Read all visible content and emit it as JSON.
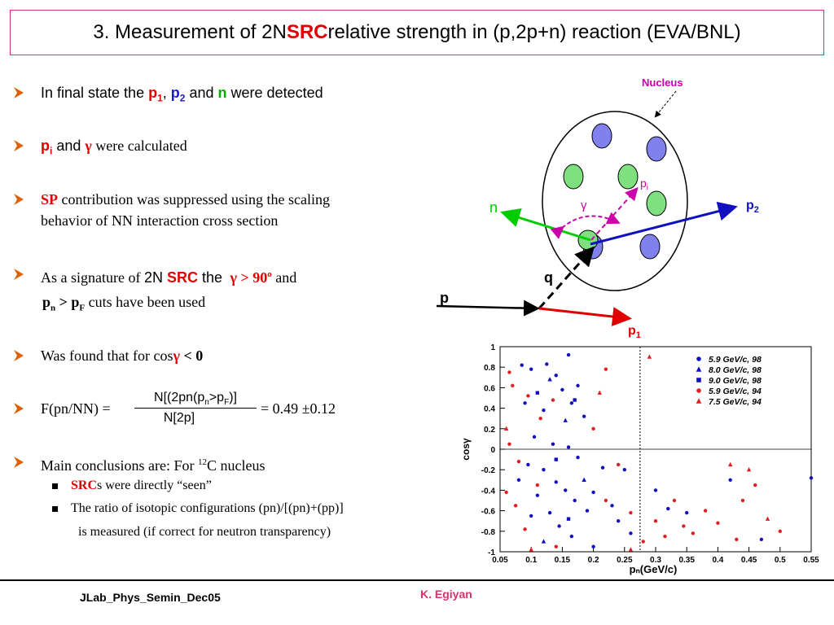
{
  "title": {
    "prefix": "3. Measurement of 2N ",
    "highlight": "SRC",
    "suffix": " relative strength in (p,2p+n) reaction (EVA/BNL)"
  },
  "bullets": {
    "b1": {
      "pre": "In final state the ",
      "p": "p",
      "sub1": "1",
      "comma": ", ",
      "p2": "p",
      "sub2": "2",
      "and": " and ",
      "n": "n",
      "post": " were detected"
    },
    "b2": {
      "p": "p",
      "sub": "i",
      "and": " and ",
      "gamma": "γ",
      "post": " were calculated"
    },
    "b3": {
      "sp": "SP",
      "line1": " contribution was suppressed using the scaling",
      "line2": "behavior of NN interaction cross section"
    },
    "b4": {
      "pre": "As a signature of ",
      "twoN": "2N ",
      "src": "SRC",
      "the": " the ",
      "cut": "γ > 90",
      "deg": "o",
      "and": " and",
      "line2_p": "p",
      "line2_n": "n",
      "line2_gt": " > p",
      "line2_F": "F",
      "line2_post": " cuts  have been used"
    },
    "b5": {
      "pre": "Was found that for cos",
      "gamma": "γ",
      "post": " < 0"
    },
    "b6": {
      "pre": "F(pn/NN) = ",
      "num_pre": "N[(2pn(p",
      "num_n": "n",
      "num_mid": ">p",
      "num_F": "F",
      "num_post": ")]",
      "den": "N[2p]",
      "result": "= 0.49 ±0.12"
    },
    "b7": {
      "pre": "Main conclusions are: For ",
      "sup": "12",
      "post": "C nucleus"
    }
  },
  "subbullets": {
    "s1": {
      "src": "SRC",
      "post": "s were directly “seen”"
    },
    "s2": {
      "line1": "The ratio of isotopic configurations (pn)/[(pn)+(pp)]",
      "line2": "is measured (if correct for neutron transparency)"
    }
  },
  "diagram": {
    "nucleus_label": "Nucleus",
    "n_label": "n",
    "p2_label": "p",
    "p2_sub": "2",
    "pi_label": "p",
    "pi_sub": "i",
    "gamma_label": "γ",
    "q_label": "q",
    "p_label": "p",
    "p1_label": "p",
    "p1_sub": "1",
    "colors": {
      "nucleon_blue": "#8080ee",
      "nucleon_green": "#7ee07e",
      "n_arrow": "#00cc00",
      "p2_arrow": "#1010c0",
      "p1_arrow": "#e00000",
      "gamma_arc": "#cc00aa",
      "nucleus_label": "#cc00aa"
    }
  },
  "chart_data": {
    "type": "scatter",
    "title": "",
    "xlabel": "pₙ(GeV/c)",
    "ylabel": "cosγ",
    "xlim": [
      0.05,
      0.55
    ],
    "ylim": [
      -1,
      1
    ],
    "x_ticks": [
      "0.05",
      "0.1",
      "0.15",
      "0.2",
      "0.25",
      "0.3",
      "0.35",
      "0.4",
      "0.45",
      "0.5",
      "0.55"
    ],
    "y_ticks": [
      "1",
      "0.8",
      "0.6",
      "0.4",
      "0.2",
      "0",
      "-0.2",
      "-0.4",
      "-0.6",
      "-0.8",
      "-1"
    ],
    "cut_x": 0.275,
    "cut_y": 0,
    "legend_position": "top-right",
    "legend": [
      "5.9 GeV/c, 98",
      "8.0 GeV/c, 98",
      "9.0 GeV/c, 98",
      "5.9 GeV/c, 94",
      "7.5 GeV/c, 94"
    ],
    "series": [
      {
        "name": "5.9 GeV/c, 98",
        "color": "#1010c0",
        "marker": "circle",
        "points": [
          [
            0.085,
            0.82
          ],
          [
            0.1,
            0.78
          ],
          [
            0.125,
            0.83
          ],
          [
            0.14,
            0.72
          ],
          [
            0.16,
            0.92
          ],
          [
            0.15,
            0.58
          ],
          [
            0.175,
            0.62
          ],
          [
            0.09,
            0.45
          ],
          [
            0.12,
            0.38
          ],
          [
            0.165,
            0.45
          ],
          [
            0.185,
            0.32
          ],
          [
            0.105,
            0.12
          ],
          [
            0.135,
            0.05
          ],
          [
            0.16,
            0.02
          ],
          [
            0.175,
            -0.08
          ],
          [
            0.095,
            -0.15
          ],
          [
            0.12,
            -0.2
          ],
          [
            0.14,
            -0.32
          ],
          [
            0.155,
            -0.4
          ],
          [
            0.17,
            -0.5
          ],
          [
            0.19,
            -0.6
          ],
          [
            0.11,
            -0.45
          ],
          [
            0.13,
            -0.62
          ],
          [
            0.145,
            -0.75
          ],
          [
            0.165,
            -0.85
          ],
          [
            0.2,
            -0.42
          ],
          [
            0.215,
            -0.18
          ],
          [
            0.23,
            -0.55
          ],
          [
            0.24,
            -0.7
          ],
          [
            0.26,
            -0.82
          ],
          [
            0.3,
            -0.4
          ],
          [
            0.32,
            -0.58
          ],
          [
            0.35,
            -0.62
          ],
          [
            0.42,
            -0.3
          ],
          [
            0.47,
            -0.88
          ],
          [
            0.55,
            -0.28
          ],
          [
            0.25,
            -0.2
          ],
          [
            0.2,
            -0.95
          ],
          [
            0.1,
            -0.65
          ],
          [
            0.08,
            -0.3
          ]
        ]
      },
      {
        "name": "8.0 GeV/c, 98",
        "color": "#1010c0",
        "marker": "triangle",
        "points": [
          [
            0.13,
            0.68
          ],
          [
            0.155,
            0.28
          ],
          [
            0.185,
            -0.3
          ],
          [
            0.12,
            -0.9
          ]
        ]
      },
      {
        "name": "9.0 GeV/c, 98",
        "color": "#1010c0",
        "marker": "square",
        "points": [
          [
            0.11,
            0.55
          ],
          [
            0.17,
            0.48
          ],
          [
            0.14,
            -0.1
          ],
          [
            0.16,
            -0.68
          ]
        ]
      },
      {
        "name": "5.9 GeV/c, 94",
        "color": "#e02020",
        "marker": "circle",
        "points": [
          [
            0.065,
            0.75
          ],
          [
            0.07,
            0.62
          ],
          [
            0.095,
            0.52
          ],
          [
            0.115,
            0.3
          ],
          [
            0.135,
            0.48
          ],
          [
            0.065,
            0.05
          ],
          [
            0.08,
            -0.12
          ],
          [
            0.06,
            -0.42
          ],
          [
            0.075,
            -0.55
          ],
          [
            0.09,
            -0.78
          ],
          [
            0.11,
            -0.35
          ],
          [
            0.2,
            0.2
          ],
          [
            0.22,
            0.78
          ],
          [
            0.24,
            -0.15
          ],
          [
            0.28,
            -0.9
          ],
          [
            0.3,
            -0.7
          ],
          [
            0.315,
            -0.85
          ],
          [
            0.33,
            -0.5
          ],
          [
            0.345,
            -0.75
          ],
          [
            0.36,
            -0.82
          ],
          [
            0.38,
            -0.6
          ],
          [
            0.4,
            -0.72
          ],
          [
            0.43,
            -0.88
          ],
          [
            0.44,
            -0.5
          ],
          [
            0.46,
            -0.35
          ],
          [
            0.5,
            -0.8
          ],
          [
            0.26,
            -0.62
          ],
          [
            0.14,
            -0.95
          ],
          [
            0.22,
            -0.5
          ]
        ]
      },
      {
        "name": "7.5 GeV/c, 94",
        "color": "#e02020",
        "marker": "triangle",
        "points": [
          [
            0.29,
            0.9
          ],
          [
            0.21,
            0.55
          ],
          [
            0.06,
            0.2
          ],
          [
            0.42,
            -0.15
          ],
          [
            0.45,
            -0.2
          ],
          [
            0.48,
            -0.68
          ],
          [
            0.1,
            -0.98
          ],
          [
            0.26,
            -0.98
          ]
        ]
      }
    ]
  }
}
